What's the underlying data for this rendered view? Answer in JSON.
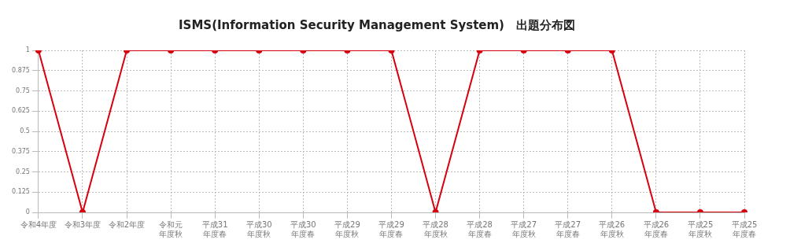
{
  "chart_data": {
    "type": "line",
    "title": "ISMS(Information Security Management System)　出題分布図",
    "categories": [
      "令和4年度",
      "令和3年度",
      "令和2年度",
      "令和元年度秋",
      "平成31年度春",
      "平成30年度秋",
      "平成30年度春",
      "平成29年度秋",
      "平成29年度春",
      "平成28年度秋",
      "平成28年度春",
      "平成27年度秋",
      "平成27年度春",
      "平成26年度秋",
      "平成26年度春",
      "平成25年度秋",
      "平成25年度春"
    ],
    "values": [
      1,
      0,
      1,
      1,
      1,
      1,
      1,
      1,
      1,
      0,
      1,
      1,
      1,
      1,
      0,
      0,
      0
    ],
    "color": "#d7000f",
    "marker": "circle",
    "line_style": "solid",
    "grid": true,
    "legend": false,
    "ylim": [
      0,
      1
    ],
    "yticks": [
      0,
      0.125,
      0.25,
      0.375,
      0.5,
      0.625,
      0.75,
      0.875,
      1
    ]
  }
}
